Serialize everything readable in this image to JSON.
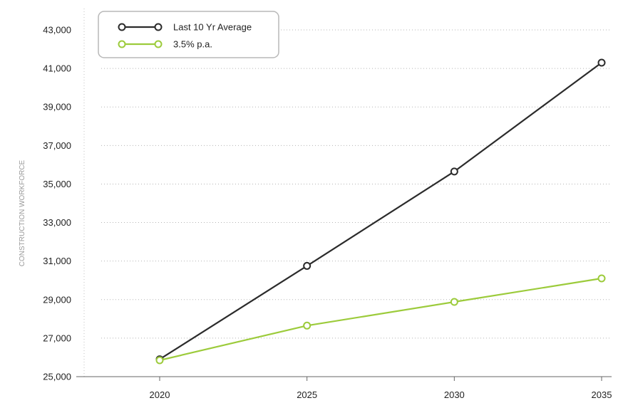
{
  "chart_data": {
    "type": "line",
    "title": "",
    "xlabel": "",
    "ylabel": "CONSTRUCTION WORKFORCE",
    "x": [
      2020,
      2025,
      2030,
      2035
    ],
    "x_tick_labels": [
      "2020",
      "2025",
      "2030",
      "2035"
    ],
    "ylim": [
      25000,
      43000
    ],
    "y_ticks": [
      25000,
      27000,
      29000,
      31000,
      33000,
      35000,
      37000,
      39000,
      41000,
      43000
    ],
    "y_tick_labels": [
      "25,000",
      "27,000",
      "29,000",
      "31,000",
      "33,000",
      "35,000",
      "37,000",
      "39,000",
      "41,000",
      "43,000"
    ],
    "grid": true,
    "legend_position": "top-left",
    "series": [
      {
        "name": "Last 10 Yr Average",
        "color": "#2b2b2b",
        "values": [
          25900,
          30750,
          35650,
          41300
        ]
      },
      {
        "name": "3.5% p.a.",
        "color": "#9ccb3b",
        "values": [
          25850,
          27650,
          28880,
          30100
        ]
      }
    ]
  }
}
